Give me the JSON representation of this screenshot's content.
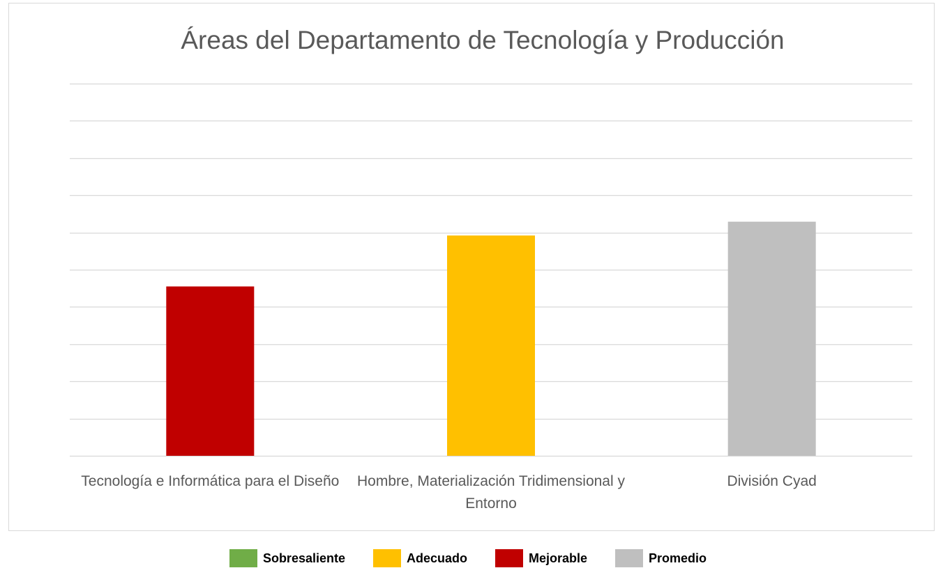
{
  "chart_data": {
    "type": "bar",
    "title": "Áreas del Departamento de Tecnología y Producción",
    "categories": [
      "Tecnología e Informática para el Diseño",
      "Hombre, Materialización Tridimensional y Entorno",
      "División Cyad"
    ],
    "values": [
      4.55,
      5.92,
      6.29
    ],
    "colors": [
      "#c00000",
      "#ffc000",
      "#bfbfbf"
    ],
    "ylim": [
      0,
      10
    ],
    "yticks": [
      0,
      1,
      2,
      3,
      4,
      5,
      6,
      7,
      8,
      9,
      10
    ],
    "grid": true,
    "legend": [
      {
        "name": "Sobresaliente",
        "color": "#70ad47"
      },
      {
        "name": "Adecuado",
        "color": "#ffc000"
      },
      {
        "name": "Mejorable",
        "color": "#c00000"
      },
      {
        "name": "Promedio",
        "color": "#bfbfbf"
      }
    ]
  }
}
